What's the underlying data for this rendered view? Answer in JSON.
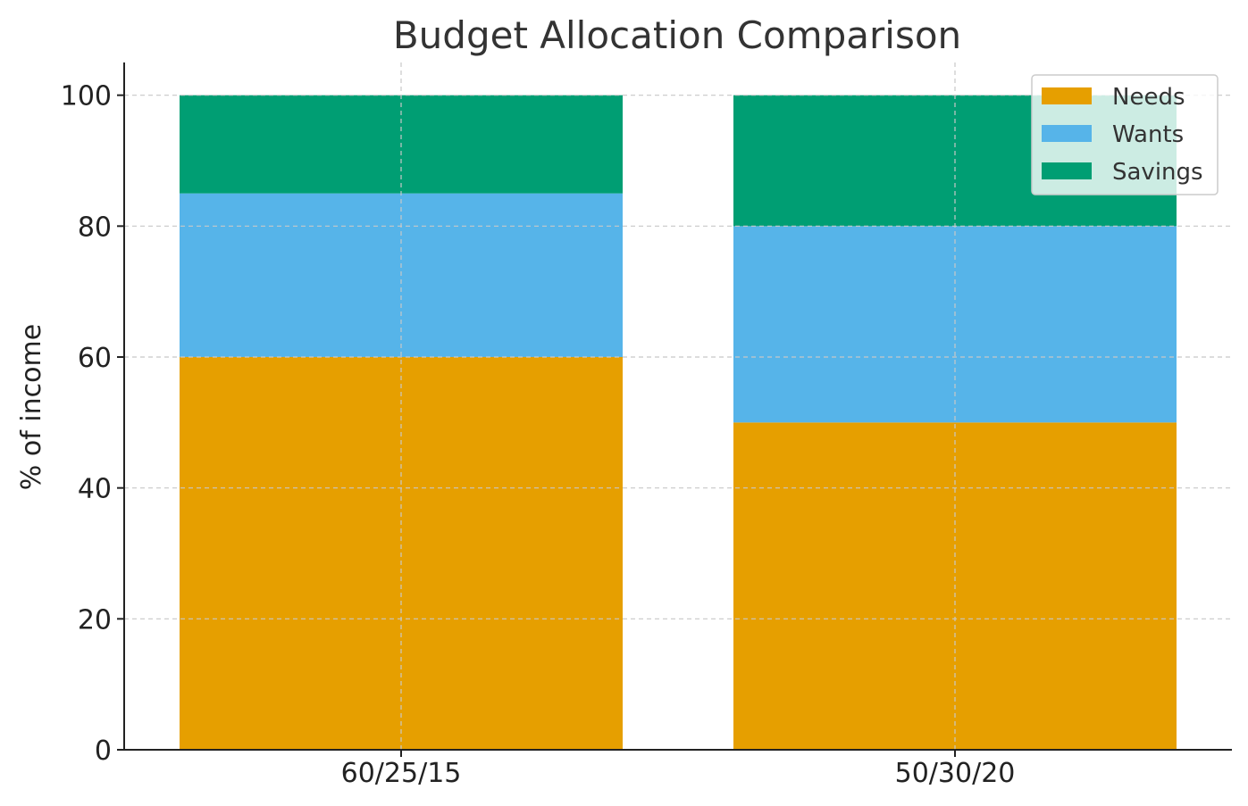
{
  "chart_data": {
    "type": "bar",
    "stacked": true,
    "title": "Budget Allocation Comparison",
    "xlabel": "",
    "ylabel": "% of income",
    "categories": [
      "60/25/15",
      "50/30/20"
    ],
    "series": [
      {
        "name": "Needs",
        "values": [
          60,
          50
        ],
        "color": "#E69F00"
      },
      {
        "name": "Wants",
        "values": [
          25,
          30
        ],
        "color": "#56B4E9"
      },
      {
        "name": "Savings",
        "values": [
          15,
          20
        ],
        "color": "#009E73"
      }
    ],
    "ylim": [
      0,
      105
    ],
    "yticks": [
      0,
      20,
      40,
      60,
      80,
      100
    ],
    "grid": true,
    "legend_position": "top-right"
  }
}
